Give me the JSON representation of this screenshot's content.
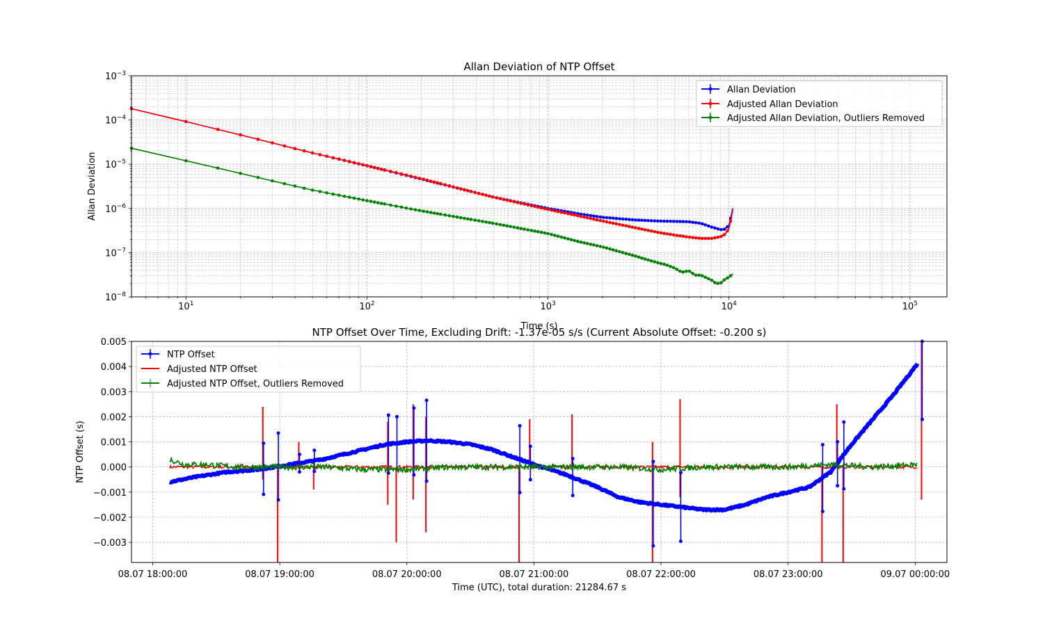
{
  "chart_data": [
    {
      "type": "line",
      "title": "Allan Deviation of NTP Offset",
      "xlabel": "Time (s)",
      "ylabel": "Allan Deviation",
      "xscale": "log",
      "yscale": "log",
      "xlim": [
        5,
        160000
      ],
      "ylim": [
        1e-08,
        0.001
      ],
      "xtick_values": [
        10,
        100,
        1000,
        10000,
        100000
      ],
      "xtick_labels": [
        [
          "10",
          "1"
        ],
        [
          "10",
          "2"
        ],
        [
          "10",
          "3"
        ],
        [
          "10",
          "4"
        ],
        [
          "10",
          "5"
        ]
      ],
      "ytick_values": [
        1e-08,
        1e-07,
        1e-06,
        1e-05,
        0.0001,
        0.001
      ],
      "ytick_labels": [
        [
          "10",
          "−8"
        ],
        [
          "10",
          "−7"
        ],
        [
          "10",
          "−6"
        ],
        [
          "10",
          "−5"
        ],
        [
          "10",
          "−4"
        ],
        [
          "10",
          "−3"
        ]
      ],
      "grid": true,
      "legend_position": "top-right",
      "series": [
        {
          "name": "Allan Deviation",
          "color": "#0000ff",
          "x": [
            5,
            10,
            20,
            50,
            100,
            200,
            500,
            1000,
            1500,
            2000,
            3000,
            4000,
            5000,
            6000,
            7000,
            8000,
            9000,
            9500,
            10000,
            10500
          ],
          "y": [
            0.00018,
            9.2e-05,
            4.6e-05,
            1.8e-05,
            9.2e-06,
            4.6e-06,
            1.8e-06,
            1e-06,
            7.5e-07,
            6.3e-07,
            5.5e-07,
            5.2e-07,
            5.1e-07,
            5e-07,
            4.6e-07,
            3.8e-07,
            3.3e-07,
            3.4e-07,
            4.2e-07,
            1e-06
          ]
        },
        {
          "name": "Adjusted Allan Deviation",
          "color": "#ff0000",
          "x": [
            5,
            10,
            20,
            50,
            100,
            200,
            500,
            1000,
            1500,
            2000,
            3000,
            4000,
            5000,
            6000,
            7000,
            8000,
            9000,
            9500,
            10000,
            10500
          ],
          "y": [
            0.00018,
            9.2e-05,
            4.6e-05,
            1.8e-05,
            9.3e-06,
            4.7e-06,
            1.8e-06,
            9.5e-07,
            6.7e-07,
            5.2e-07,
            3.7e-07,
            2.9e-07,
            2.5e-07,
            2.25e-07,
            2.1e-07,
            2.1e-07,
            2.3e-07,
            2.6e-07,
            3.5e-07,
            9e-07
          ]
        },
        {
          "name": "Adjusted Allan Deviation, Outliers Removed",
          "color": "#008000",
          "x": [
            5,
            10,
            20,
            30,
            50,
            100,
            200,
            500,
            1000,
            1500,
            2000,
            3000,
            3500,
            4000,
            4500,
            5000,
            5500,
            6000,
            6500,
            7000,
            7500,
            8000,
            8500,
            9000,
            9500,
            10000,
            10500
          ],
          "y": [
            2.3e-05,
            1.2e-05,
            6.2e-06,
            4.2e-06,
            2.6e-06,
            1.5e-06,
            8.8e-07,
            4.6e-07,
            2.7e-07,
            1.75e-07,
            1.35e-07,
            8.5e-08,
            7e-08,
            6e-08,
            5.3e-08,
            4.5e-08,
            3.6e-08,
            3.9e-08,
            3.1e-08,
            3.1e-08,
            2.7e-08,
            2.4e-08,
            2e-08,
            2.05e-08,
            2.5e-08,
            2.8e-08,
            3.3e-08
          ]
        }
      ]
    },
    {
      "type": "line",
      "title": "NTP Offset Over Time, Excluding Drift: -1.37e-05 s/s (Current Absolute Offset: -0.200 s)",
      "xlabel": "Time (UTC), total duration: 21284.67 s",
      "ylabel": "NTP Offset (s)",
      "x_unit": "minutes after 08.07 18:00:00",
      "xlim": [
        -10,
        375
      ],
      "ylim": [
        -0.0038,
        0.005
      ],
      "xtick_values": [
        0,
        60,
        120,
        180,
        240,
        300,
        360
      ],
      "xtick_labels": [
        "08.07 18:00:00",
        "08.07 19:00:00",
        "08.07 20:00:00",
        "08.07 21:00:00",
        "08.07 22:00:00",
        "08.07 23:00:00",
        "09.07 00:00:00"
      ],
      "ytick_values": [
        -0.003,
        -0.002,
        -0.001,
        0.0,
        0.001,
        0.002,
        0.003,
        0.004,
        0.005
      ],
      "ytick_labels": [
        "−0.003",
        "−0.002",
        "−0.001",
        "0.000",
        "0.001",
        "0.002",
        "0.003",
        "0.004",
        "0.005"
      ],
      "grid": true,
      "legend_position": "top-left",
      "series": [
        {
          "name": "NTP Offset",
          "color": "#0000ff",
          "x": [
            8,
            20,
            35,
            50,
            65,
            80,
            100,
            110,
            120,
            130,
            140,
            150,
            160,
            170,
            180,
            195,
            210,
            220,
            230,
            240,
            250,
            260,
            270,
            280,
            290,
            300,
            310,
            320,
            330,
            340,
            350,
            361
          ],
          "y": [
            -0.0006,
            -0.0004,
            -0.0002,
            -0.0001,
            0.0001,
            0.0003,
            0.0007,
            0.0009,
            0.001,
            0.00105,
            0.001,
            0.0009,
            0.0007,
            0.0004,
            0.0001,
            -0.0003,
            -0.0008,
            -0.0012,
            -0.0014,
            -0.0015,
            -0.0016,
            -0.0017,
            -0.0017,
            -0.0015,
            -0.0012,
            -0.001,
            -0.0008,
            -0.0002,
            0.0009,
            0.0019,
            0.0029,
            0.0041
          ]
        },
        {
          "name": "Adjusted NTP Offset",
          "color": "#ff0000",
          "x": [
            8,
            361
          ],
          "y": [
            0.0,
            0.0
          ]
        },
        {
          "name": "Adjusted NTP Offset, Outliers Removed",
          "color": "#008000",
          "x": [
            8,
            15,
            25,
            40,
            60,
            80,
            100,
            120,
            140,
            160,
            180,
            200,
            220,
            240,
            260,
            280,
            300,
            320,
            340,
            361
          ],
          "y": [
            0.0003,
            0.0001,
            0.0001,
            0.0,
            0.0,
            0.0,
            -0.0001,
            -0.0001,
            0.0,
            0.0,
            0.0,
            0.0,
            0.0,
            -0.0001,
            0.0,
            0.0,
            0.0,
            0.0001,
            0.0,
            0.0001
          ]
        }
      ],
      "spikes": [
        {
          "x": 52,
          "ylo": -0.0005,
          "yhi": 0.0024
        },
        {
          "x": 59,
          "ylo": -0.0038,
          "yhi": 0.0
        },
        {
          "x": 69,
          "ylo": 0.0,
          "yhi": 0.001
        },
        {
          "x": 76,
          "ylo": -0.0009,
          "yhi": 0.0003
        },
        {
          "x": 111,
          "ylo": -0.0015,
          "yhi": 0.0018
        },
        {
          "x": 115,
          "ylo": -0.003,
          "yhi": 0.0
        },
        {
          "x": 123,
          "ylo": -0.0013,
          "yhi": 0.0025
        },
        {
          "x": 129,
          "ylo": -0.0026,
          "yhi": 0.002
        },
        {
          "x": 173,
          "ylo": -0.0038,
          "yhi": 0.0
        },
        {
          "x": 178,
          "ylo": 0.0,
          "yhi": 0.0019
        },
        {
          "x": 198,
          "ylo": 0.0,
          "yhi": 0.0021
        },
        {
          "x": 236,
          "ylo": -0.0038,
          "yhi": 0.001
        },
        {
          "x": 249,
          "ylo": -0.0012,
          "yhi": 0.0027
        },
        {
          "x": 316,
          "ylo": -0.0038,
          "yhi": 0.0
        },
        {
          "x": 323,
          "ylo": 0.0,
          "yhi": 0.0025
        },
        {
          "x": 326,
          "ylo": -0.0038,
          "yhi": 0.0
        },
        {
          "x": 363,
          "ylo": -0.0013,
          "yhi": 0.005
        }
      ]
    }
  ]
}
